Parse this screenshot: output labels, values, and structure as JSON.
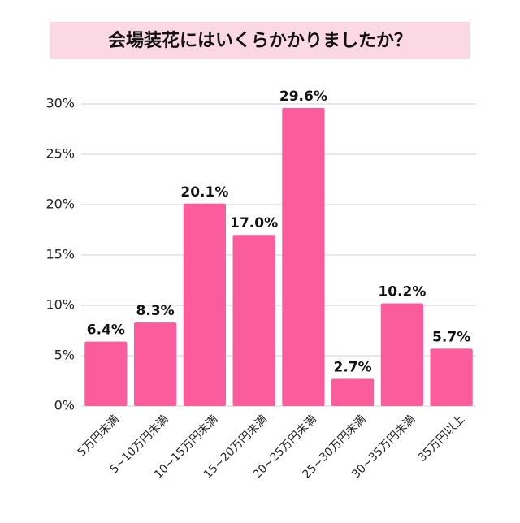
{
  "chart_data": {
    "type": "bar",
    "title": "会場装花にはいくらかかりましたか？",
    "categories": [
      "5万円未満",
      "5~10万円未満",
      "10~15万円未満",
      "15~20万円未満",
      "20~25万円未満",
      "25~30万円未満",
      "30~35万円未満",
      "35万円以上"
    ],
    "values": [
      6.4,
      8.3,
      20.1,
      17.0,
      29.6,
      2.7,
      10.2,
      5.7
    ],
    "value_labels": [
      "6.4%",
      "8.3%",
      "20.1%",
      "17.0%",
      "29.6%",
      "2.7%",
      "10.2%",
      "5.7%"
    ],
    "color": "#fa5c9c",
    "ylim": [
      0,
      30
    ],
    "yticks": [
      {
        "value": 0,
        "label": "0%"
      },
      {
        "value": 5,
        "label": "5%"
      },
      {
        "value": 10,
        "label": "10%"
      },
      {
        "value": 15,
        "label": "15%"
      },
      {
        "value": 20,
        "label": "20%"
      },
      {
        "value": 25,
        "label": "25%"
      },
      {
        "value": 30,
        "label": "30%"
      }
    ],
    "grid": true
  }
}
